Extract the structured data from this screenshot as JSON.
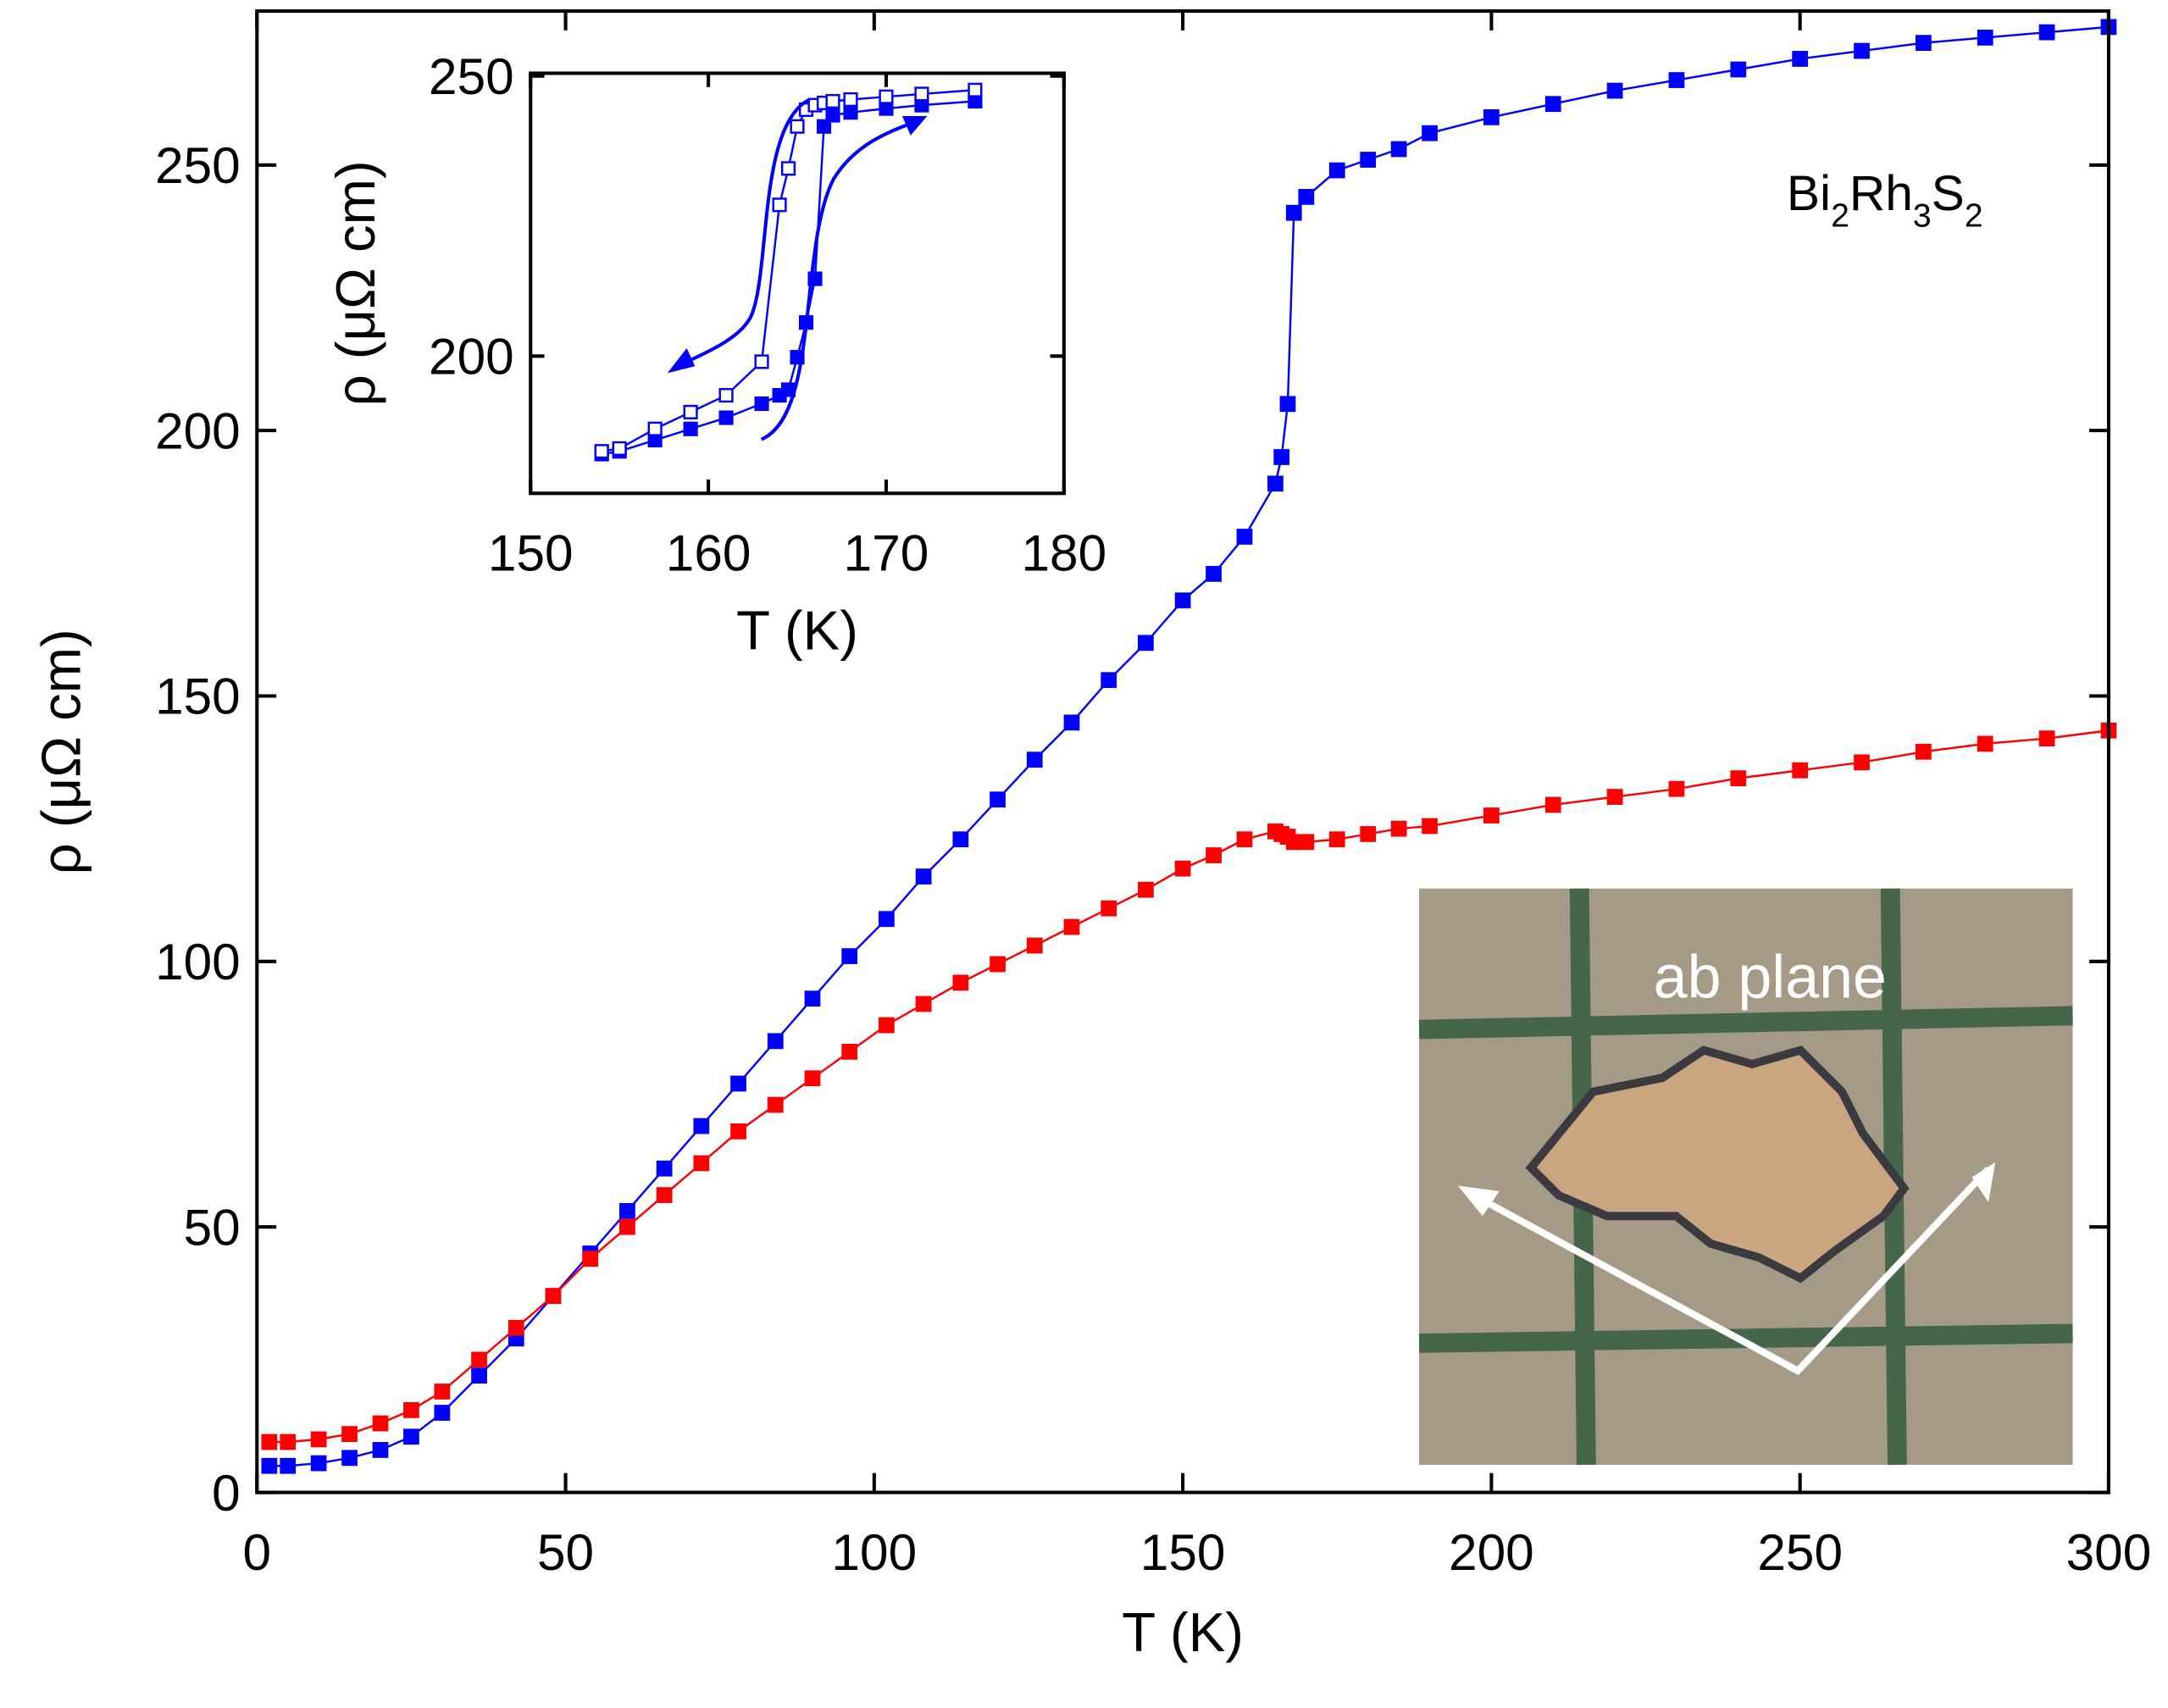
{
  "chart_data": [
    {
      "type": "line",
      "xlabel": "T (K)",
      "ylabel": "ρ (μΩ cm)",
      "xlim": [
        0,
        300
      ],
      "ylim": [
        0,
        279
      ],
      "xticks": [
        0,
        50,
        100,
        150,
        200,
        250,
        300
      ],
      "yticks": [
        0,
        50,
        100,
        150,
        200,
        250
      ],
      "x": [
        2,
        5,
        10,
        15,
        20,
        25,
        30,
        36,
        42,
        48,
        54,
        60,
        66,
        72,
        78,
        84,
        90,
        96,
        102,
        108,
        114,
        120,
        126,
        132,
        138,
        144,
        150,
        155,
        160,
        165,
        166,
        167,
        168,
        170,
        175,
        180,
        185,
        190,
        200,
        210,
        220,
        230,
        240,
        250,
        260,
        270,
        280,
        290,
        300
      ],
      "series": [
        {
          "color": "#0000ff",
          "marker": "filled",
          "values": [
            5,
            5,
            5.5,
            6.5,
            8,
            10.5,
            15,
            22,
            29,
            37,
            45,
            53,
            61,
            69,
            77,
            85,
            93,
            101,
            108,
            116,
            123,
            130.5,
            138,
            145,
            153,
            160,
            168,
            173,
            180,
            190,
            195,
            205,
            241,
            244,
            249,
            251,
            253,
            256,
            259,
            261.5,
            264,
            266,
            268,
            270,
            271.5,
            273,
            274,
            275,
            276
          ]
        },
        {
          "color": "#ff0000",
          "marker": "filled",
          "values": [
            9.5,
            9.5,
            10,
            11,
            13,
            15.5,
            19,
            25,
            31,
            37,
            44,
            50,
            56,
            62,
            68,
            73,
            78,
            83,
            88,
            92,
            96,
            99.5,
            103,
            106.5,
            110,
            113.5,
            117.5,
            120,
            123,
            124.5,
            124,
            123.5,
            122.5,
            122.5,
            123,
            124,
            125,
            125.5,
            127.5,
            129.5,
            131,
            132.5,
            134.5,
            136,
            137.5,
            139.5,
            141,
            142,
            143.5
          ]
        }
      ],
      "annotation": [
        "Bi",
        "2",
        "Rh",
        "3",
        "S",
        "2"
      ],
      "photo_label": "ab plane"
    },
    {
      "type": "line",
      "xlabel": "T (K)",
      "ylabel": "ρ (μΩ cm)",
      "xlim": [
        150,
        180
      ],
      "ylim": [
        175.5,
        250.5
      ],
      "xticks": [
        150,
        160,
        170,
        180
      ],
      "yticks": [
        200,
        250
      ],
      "x": [
        154,
        155,
        157,
        159,
        161,
        163,
        164,
        164.5,
        165,
        165.5,
        166,
        166.5,
        167,
        168,
        170,
        172,
        175
      ],
      "series": [
        {
          "color": "#0000ff",
          "marker": "filled",
          "values": [
            182.5,
            183,
            185,
            187,
            189,
            191.5,
            193,
            194,
            199.8,
            206,
            213.8,
            241,
            243,
            243.5,
            244.2,
            244.8,
            245.5
          ]
        },
        {
          "color": "#0000ff",
          "marker": "open",
          "values": [
            183,
            183.5,
            187,
            190,
            193,
            199,
            227,
            233.5,
            241,
            244,
            244.8,
            245.2,
            245.5,
            245.8,
            246.3,
            246.8,
            247.5
          ]
        }
      ]
    }
  ]
}
